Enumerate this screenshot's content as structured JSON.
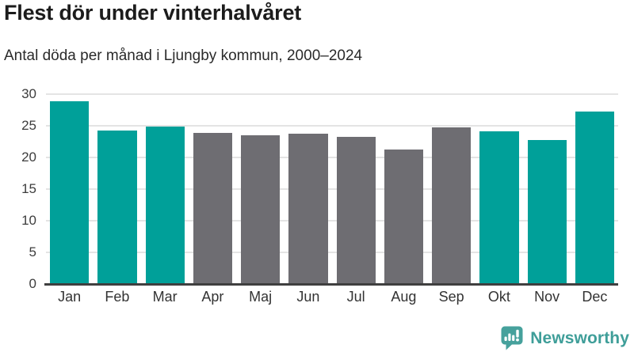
{
  "header": {
    "title": "Flest dör under vinterhalvåret",
    "subtitle": "Antal döda per månad i Ljungby kommun, 2000–2024"
  },
  "chart_data": {
    "type": "bar",
    "title": "Flest dör under vinterhalvåret",
    "subtitle": "Antal döda per månad i Ljungby kommun, 2000–2024",
    "categories": [
      "Jan",
      "Feb",
      "Mar",
      "Apr",
      "Maj",
      "Jun",
      "Jul",
      "Aug",
      "Sep",
      "Okt",
      "Nov",
      "Dec"
    ],
    "values": [
      28.9,
      24.2,
      24.9,
      23.9,
      23.5,
      23.8,
      23.2,
      21.3,
      24.8,
      24.1,
      22.7,
      27.2
    ],
    "bar_colors": [
      "#00a099",
      "#00a099",
      "#00a099",
      "#6e6d72",
      "#6e6d72",
      "#6e6d72",
      "#6e6d72",
      "#6e6d72",
      "#6e6d72",
      "#00a099",
      "#00a099",
      "#00a099"
    ],
    "highlight_color": "#00a099",
    "muted_color": "#6e6d72",
    "xlabel": "",
    "ylabel": "",
    "ylim": [
      0,
      30
    ],
    "yticks": [
      0,
      5,
      10,
      15,
      20,
      25,
      30
    ],
    "grid": "horizontal-only",
    "legend": "none"
  },
  "footer": {
    "brand_name": "Newsworthy",
    "brand_color": "#3f9e99",
    "logo_icon": "bar-chart-speech-bubble-icon"
  },
  "colors": {
    "background": "#ffffff",
    "title_text": "#1c1c1c",
    "axis_text": "#3d3d3d",
    "gridline": "#e4e4e4",
    "baseline": "#3f3f3f"
  }
}
